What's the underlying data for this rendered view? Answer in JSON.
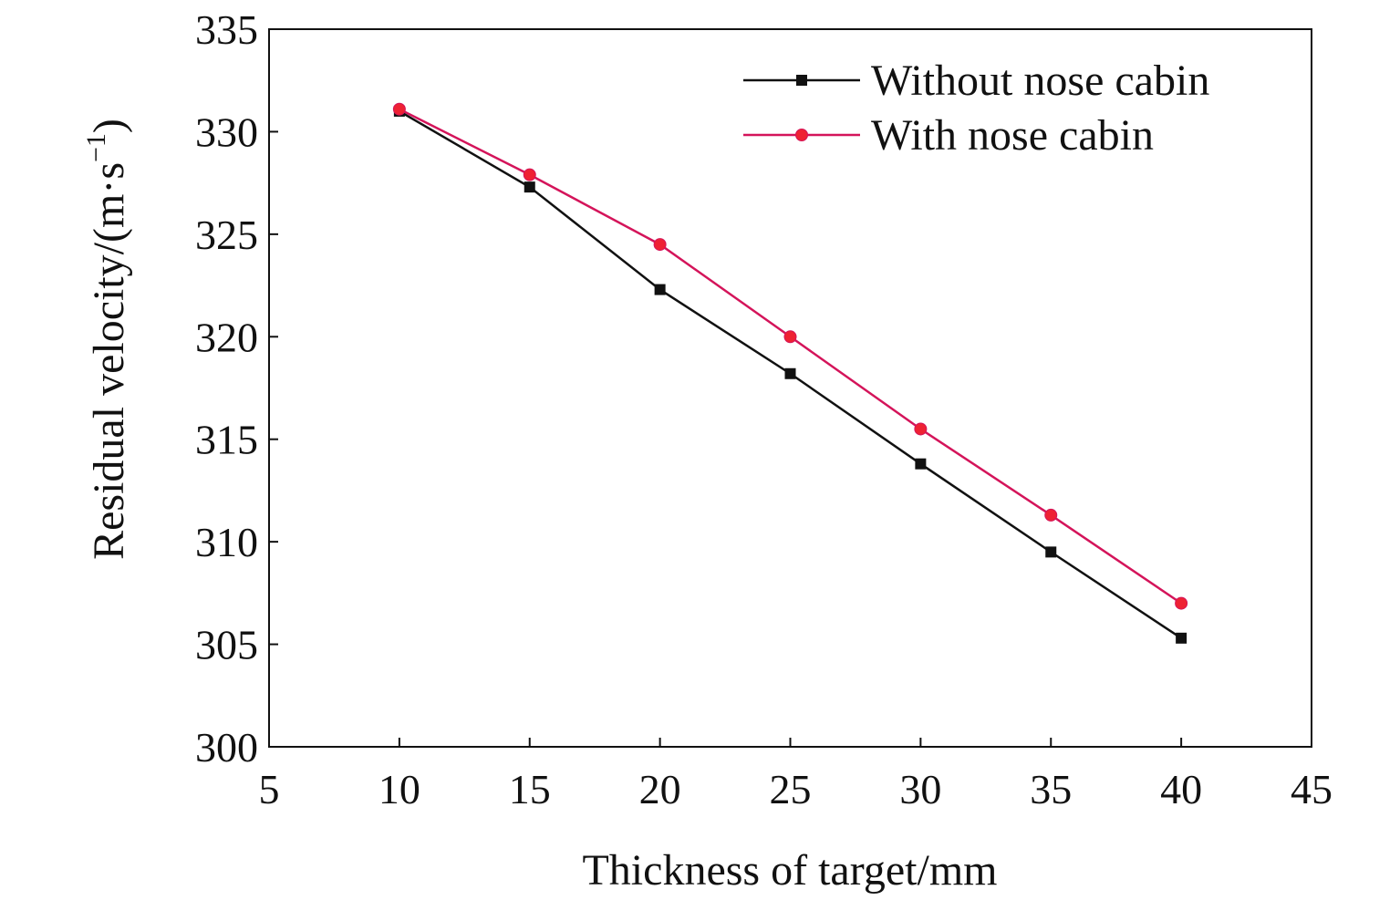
{
  "chart_data": {
    "type": "line",
    "title": "",
    "xlabel": "Thickness of target/mm",
    "ylabel": "Residual velocity/(m·s",
    "ylabel_superscript": "−1",
    "ylabel_close": ")",
    "xlim": [
      5,
      45
    ],
    "ylim": [
      300,
      335
    ],
    "xticks": [
      5,
      10,
      15,
      20,
      25,
      30,
      35,
      40,
      45
    ],
    "yticks": [
      300,
      305,
      310,
      315,
      320,
      325,
      330,
      335
    ],
    "grid": false,
    "legend_position": "top-right",
    "series": [
      {
        "name": "Without nose cabin",
        "color": "#111111",
        "marker": "square",
        "x": [
          10,
          15,
          20,
          25,
          30,
          35,
          40
        ],
        "y": [
          331.0,
          327.3,
          322.3,
          318.2,
          313.8,
          309.5,
          305.3
        ]
      },
      {
        "name": "With nose cabin",
        "color": "#d4145a",
        "marker_color": "#ee2233",
        "marker": "circle",
        "x": [
          10,
          15,
          20,
          25,
          30,
          35,
          40
        ],
        "y": [
          331.1,
          327.9,
          324.5,
          320.0,
          315.5,
          311.3,
          307.0
        ]
      }
    ]
  }
}
